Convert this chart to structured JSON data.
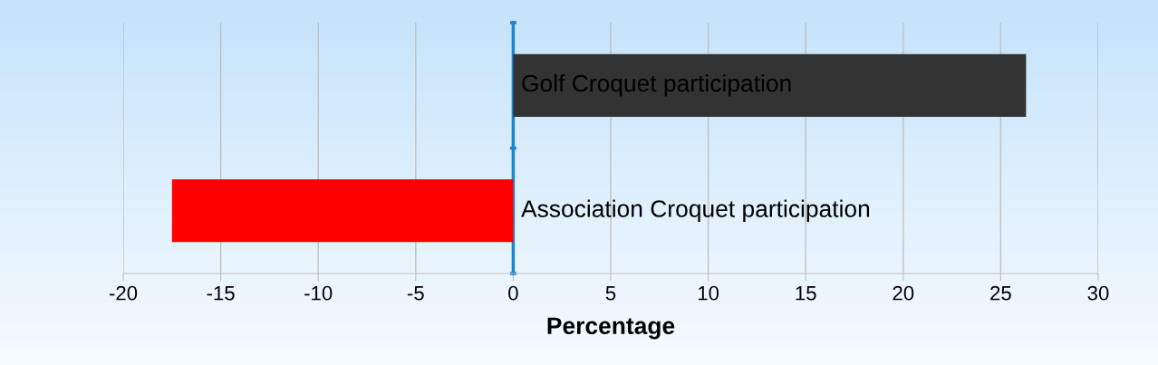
{
  "chart_data": {
    "type": "bar",
    "orientation": "horizontal",
    "xlabel": "Percentage",
    "categories": [
      "Golf Croquet participation",
      "Association Croquet participation"
    ],
    "values": [
      26.3,
      -17.5
    ],
    "colors": [
      "#333333",
      "#ff0000"
    ],
    "xlim": [
      -20,
      30
    ],
    "xticks": [
      -20,
      -15,
      -10,
      -5,
      0,
      5,
      10,
      15,
      20,
      25,
      30
    ],
    "grid": "x"
  }
}
